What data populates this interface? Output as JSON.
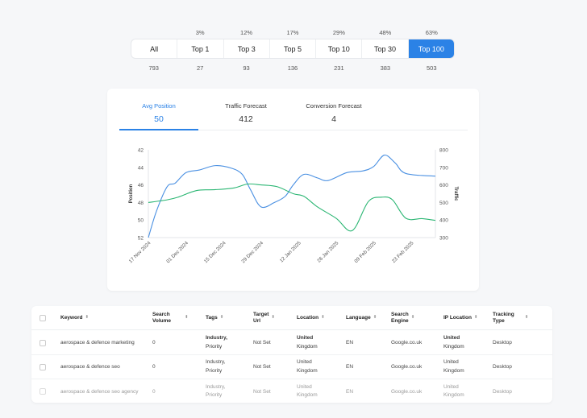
{
  "position_filter": {
    "segments": [
      {
        "label": "All",
        "percent": "",
        "count": "793"
      },
      {
        "label": "Top 1",
        "percent": "3%",
        "count": "27"
      },
      {
        "label": "Top 3",
        "percent": "12%",
        "count": "93"
      },
      {
        "label": "Top 5",
        "percent": "17%",
        "count": "136"
      },
      {
        "label": "Top 10",
        "percent": "29%",
        "count": "231"
      },
      {
        "label": "Top 30",
        "percent": "48%",
        "count": "383"
      },
      {
        "label": "Top 100",
        "percent": "63%",
        "count": "503"
      }
    ],
    "active": "Top 100",
    "active_color": "#2b82e6"
  },
  "chart_tabs": [
    {
      "label": "Avg Position",
      "value": "50"
    },
    {
      "label": "Traffic Forecast",
      "value": "412"
    },
    {
      "label": "Conversion Forecast",
      "value": "4"
    }
  ],
  "chart_data": {
    "type": "line",
    "ylabel": "Position",
    "y2label": "Traffic",
    "x_ticks": [
      "17 Nov 2024",
      "01 Dec 2024",
      "15 Dec 2024",
      "29 Dec 2024",
      "12 Jan 2025",
      "26 Jan 2025",
      "09 Feb 2025",
      "23 Feb 2025"
    ],
    "y_ticks": [
      "42",
      "44",
      "46",
      "48",
      "50",
      "52"
    ],
    "y2_ticks": [
      "800",
      "700",
      "600",
      "500",
      "400",
      "300"
    ],
    "ylim": [
      52,
      42
    ],
    "y2lim": [
      300,
      800
    ],
    "x_range": [
      "2024-11-17",
      "2025-03-04"
    ],
    "series": [
      {
        "color": "#4a90e2",
        "axis": "left",
        "points": [
          [
            "2024-11-17",
            52.0
          ],
          [
            "2024-11-20",
            49.0
          ],
          [
            "2024-11-24",
            46.2
          ],
          [
            "2024-11-27",
            45.8
          ],
          [
            "2024-12-01",
            44.6
          ],
          [
            "2024-12-06",
            44.3
          ],
          [
            "2024-12-12",
            43.8
          ],
          [
            "2024-12-18",
            44.1
          ],
          [
            "2024-12-22",
            44.8
          ],
          [
            "2024-12-25",
            46.5
          ],
          [
            "2024-12-29",
            48.5
          ],
          [
            "2025-01-03",
            48.0
          ],
          [
            "2025-01-07",
            47.3
          ],
          [
            "2025-01-10",
            46.0
          ],
          [
            "2025-01-14",
            44.8
          ],
          [
            "2025-01-19",
            45.2
          ],
          [
            "2025-01-23",
            45.5
          ],
          [
            "2025-01-30",
            44.6
          ],
          [
            "2025-02-05",
            44.4
          ],
          [
            "2025-02-09",
            43.9
          ],
          [
            "2025-02-13",
            42.6
          ],
          [
            "2025-02-17",
            43.5
          ],
          [
            "2025-02-21",
            44.7
          ],
          [
            "2025-03-04",
            45.0
          ]
        ]
      },
      {
        "color": "#2bb673",
        "axis": "right",
        "points": [
          [
            "2024-11-17",
            500
          ],
          [
            "2024-11-24",
            515
          ],
          [
            "2024-11-28",
            530
          ],
          [
            "2024-12-05",
            568
          ],
          [
            "2024-12-12",
            573
          ],
          [
            "2024-12-19",
            583
          ],
          [
            "2024-12-24",
            605
          ],
          [
            "2024-12-29",
            600
          ],
          [
            "2025-01-04",
            590
          ],
          [
            "2025-01-10",
            550
          ],
          [
            "2025-01-14",
            535
          ],
          [
            "2025-01-19",
            475
          ],
          [
            "2025-01-26",
            410
          ],
          [
            "2025-02-01",
            340
          ],
          [
            "2025-02-07",
            505
          ],
          [
            "2025-02-12",
            530
          ],
          [
            "2025-02-16",
            515
          ],
          [
            "2025-02-21",
            410
          ],
          [
            "2025-02-27",
            408
          ],
          [
            "2025-03-04",
            398
          ]
        ]
      }
    ]
  },
  "table": {
    "headers": {
      "keyword": "Keyword",
      "volume": "Search\nVolume",
      "tags": "Tags",
      "target": "Target\nUrl",
      "location": "Location",
      "language": "Language",
      "engine": "Search\nEngine",
      "ip": "IP Location",
      "tracking": "Tracking\nType"
    },
    "rows": [
      {
        "keyword": "aerospace & defence marketing",
        "volume": "0",
        "tags_1": "Industry,",
        "tags_2": "Priority",
        "target": "Not Set",
        "loc_1": "United",
        "loc_2": "Kingdom",
        "language": "EN",
        "engine": "Google.co.uk",
        "ip_1": "United",
        "ip_2": "Kingdom",
        "tracking": "Desktop"
      },
      {
        "keyword": "aerospace & defence seo",
        "volume": "0",
        "tags_1": "Industry,",
        "tags_2": "Priority",
        "target": "Not Set",
        "loc_1": "United",
        "loc_2": "Kingdom",
        "language": "EN",
        "engine": "Google.co.uk",
        "ip_1": "United",
        "ip_2": "Kingdom",
        "tracking": "Desktop"
      },
      {
        "keyword": "aerospace & defence seo agency",
        "volume": "0",
        "tags_1": "Industry,",
        "tags_2": "Priority",
        "target": "Not Set",
        "loc_1": "United",
        "loc_2": "Kingdom",
        "language": "EN",
        "engine": "Google.co.uk",
        "ip_1": "United",
        "ip_2": "Kingdom",
        "tracking": "Desktop"
      }
    ]
  }
}
